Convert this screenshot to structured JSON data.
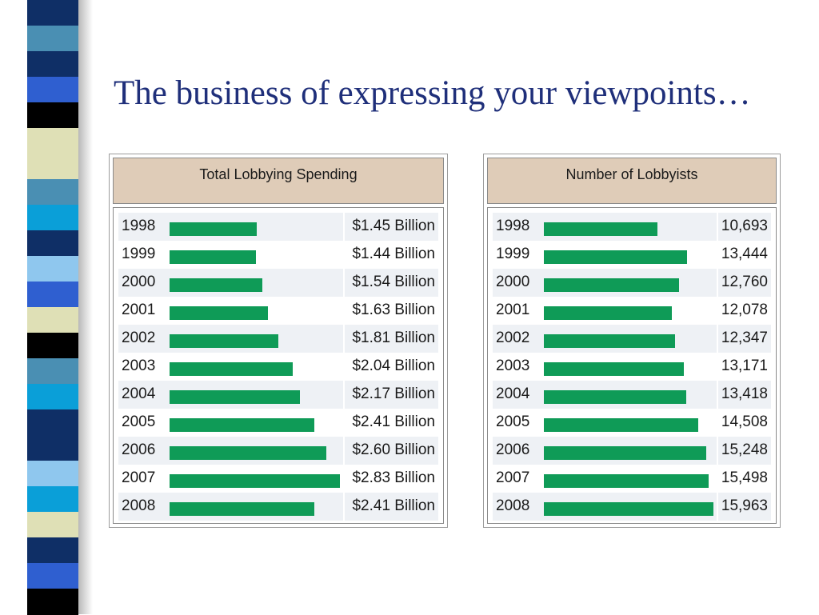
{
  "slide": {
    "title": "The business of expressing your viewpoints…"
  },
  "colors": {
    "bar": "#0f9b57",
    "header_bg": "#dfccb8",
    "title": "#1f2f7a",
    "alt_row": "#eef1f5"
  },
  "stripe_colors": [
    "#0f2f66",
    "#4a8fb3",
    "#0f2f66",
    "#2f5fd0",
    "#000000",
    "#dfe0b6",
    "#dfe0b6",
    "#4a8fb3",
    "#0a9fd8",
    "#0f2f66",
    "#8fc7ee",
    "#2f5fd0",
    "#dfe0b6",
    "#000000",
    "#4a8fb3",
    "#0a9fd8",
    "#0f2f66",
    "#0f2f66",
    "#8fc7ee",
    "#0a9fd8",
    "#dfe0b6",
    "#0f2f66",
    "#2f5fd0",
    "#000000"
  ],
  "chart_data": [
    {
      "type": "bar",
      "orientation": "horizontal",
      "title": "Total Lobbying Spending",
      "categories": [
        "1998",
        "1999",
        "2000",
        "2001",
        "2002",
        "2003",
        "2004",
        "2005",
        "2006",
        "2007",
        "2008"
      ],
      "values": [
        1.45,
        1.44,
        1.54,
        1.63,
        1.81,
        2.04,
        2.17,
        2.41,
        2.6,
        2.83,
        2.41
      ],
      "value_labels": [
        "$1.45 Billion",
        "$1.44 Billion",
        "$1.54 Billion",
        "$1.63 Billion",
        "$1.81 Billion",
        "$2.04 Billion",
        "$2.17 Billion",
        "$2.41 Billion",
        "$2.60 Billion",
        "$2.83 Billion",
        "$2.41 Billion"
      ],
      "xlim": [
        0,
        2.83
      ]
    },
    {
      "type": "bar",
      "orientation": "horizontal",
      "title": "Number of Lobbyists",
      "categories": [
        "1998",
        "1999",
        "2000",
        "2001",
        "2002",
        "2003",
        "2004",
        "2005",
        "2006",
        "2007",
        "2008"
      ],
      "values": [
        10693,
        13444,
        12760,
        12078,
        12347,
        13171,
        13418,
        14508,
        15248,
        15498,
        15963
      ],
      "value_labels": [
        "10,693",
        "13,444",
        "12,760",
        "12,078",
        "12,347",
        "13,171",
        "13,418",
        "14,508",
        "15,248",
        "15,498",
        "15,963"
      ],
      "xlim": [
        0,
        15963
      ]
    }
  ]
}
